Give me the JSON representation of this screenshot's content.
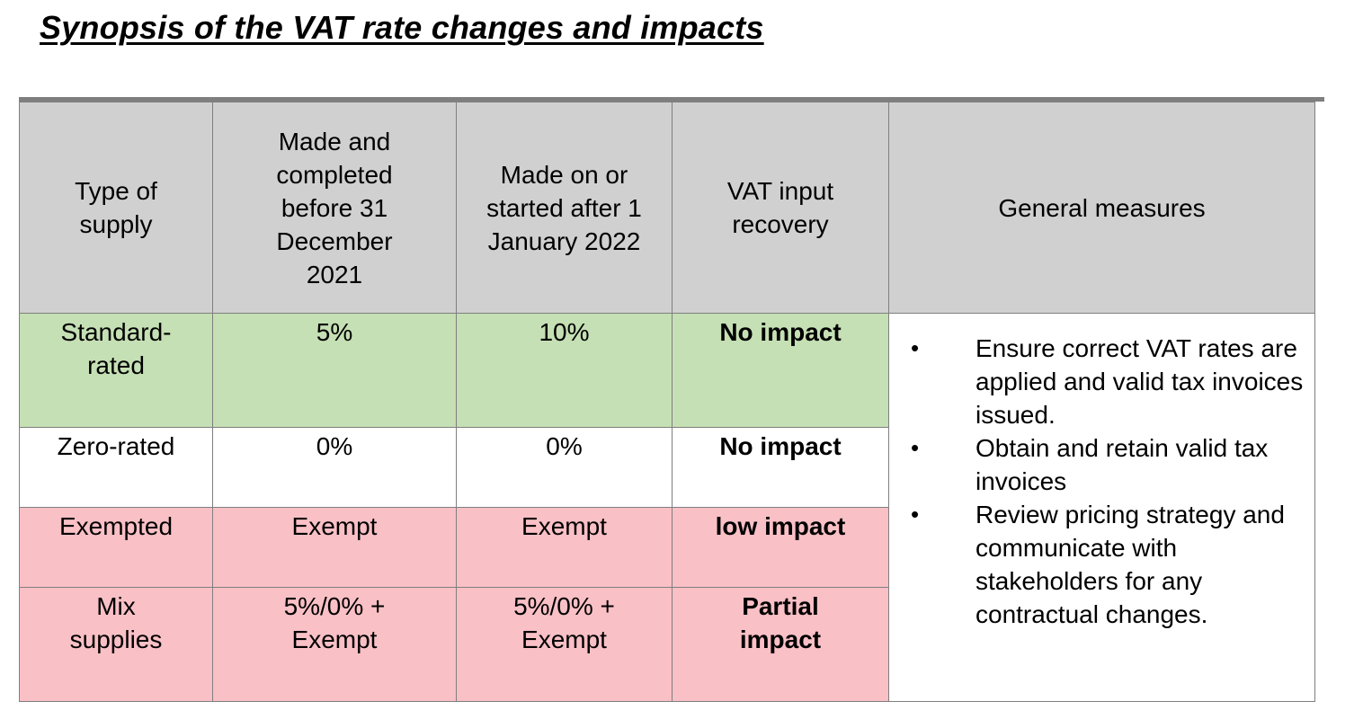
{
  "title": "Synopsis of the VAT rate changes and impacts",
  "table": {
    "headers": [
      "Type of supply",
      "Made and completed before 31 December 2021",
      "Made on or started after 1 January 2022",
      "VAT input recovery",
      "General measures"
    ],
    "rows": [
      {
        "type": "Standard-rated",
        "before": "5%",
        "after": "10%",
        "recovery": "No impact"
      },
      {
        "type": "Zero-rated",
        "before": "0%",
        "after": "0%",
        "recovery": "No impact"
      },
      {
        "type": "Exempted",
        "before": "Exempt",
        "after": "Exempt",
        "recovery": "low impact"
      },
      {
        "type": "Mix supplies",
        "before": "5%/0% + Exempt",
        "after": "5%/0% + Exempt",
        "recovery": "Partial impact"
      }
    ],
    "general_measures": [
      "Ensure correct VAT rates are applied and valid tax invoices issued.",
      "Obtain and retain valid tax invoices",
      "Review pricing strategy and communicate with stakeholders for any contractual changes."
    ],
    "bullet_symbol": "•"
  },
  "colors": {
    "header_bg": "#d0d0d0",
    "standard_bg": "#c5e0b4",
    "zero_bg": "#ffffff",
    "exempt_bg": "#f9c0c6",
    "mix_bg": "#f9c0c6",
    "border": "#7f7f7f"
  }
}
